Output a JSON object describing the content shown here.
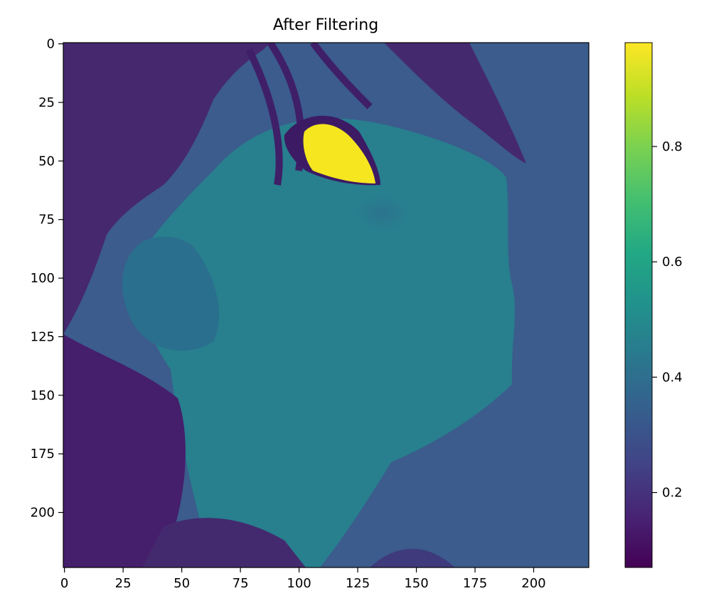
{
  "chart_data": {
    "type": "heatmap",
    "title": "After Filtering",
    "xlabel": "",
    "ylabel": "",
    "colormap": "viridis",
    "x_range": [
      0,
      223
    ],
    "y_range": [
      0,
      223
    ],
    "x_ticks": [
      0,
      25,
      50,
      75,
      100,
      125,
      150,
      175,
      200
    ],
    "y_ticks": [
      0,
      25,
      50,
      75,
      100,
      125,
      150,
      175,
      200
    ],
    "colorbar": {
      "range": [
        0.07,
        0.98
      ],
      "ticks": [
        0.2,
        0.4,
        0.6,
        0.8
      ],
      "tick_labels": [
        "0.2",
        "0.4",
        "0.6",
        "0.8"
      ]
    },
    "regions": [
      {
        "label": "background",
        "value": 0.32
      },
      {
        "label": "hair",
        "value": 0.15
      },
      {
        "label": "skin",
        "value": 0.47
      },
      {
        "label": "eye",
        "value": 0.97
      },
      {
        "label": "cheek-blush",
        "value": 0.38
      }
    ],
    "noise_value": 0.6,
    "grid": false
  }
}
